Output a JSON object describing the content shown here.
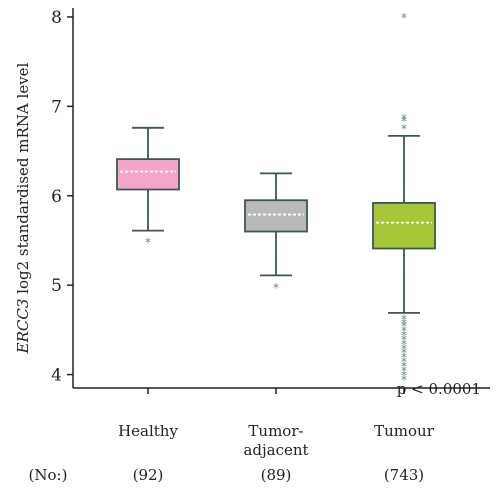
{
  "chart_data": {
    "type": "box",
    "ylabel_italic": "ERCC3",
    "ylabel_rest": " log2 standardised mRNA level",
    "ylim": [
      3.85,
      8.1
    ],
    "yticks": [
      "4",
      "5",
      "6",
      "7",
      "8"
    ],
    "annotation": "p < 0.0001",
    "count_prefix": "(No:)",
    "groups": [
      {
        "label_lines": [
          "Healthy"
        ],
        "count": "(92)",
        "color": "#f4a6c8",
        "whisker_low": 5.61,
        "q1": 6.07,
        "median": 6.27,
        "q3": 6.41,
        "whisker_high": 6.76,
        "outliers": [
          5.49
        ]
      },
      {
        "label_lines": [
          "Tumor-",
          "adjacent"
        ],
        "count": "(89)",
        "color": "#b9b9b9",
        "whisker_low": 5.11,
        "q1": 5.6,
        "median": 5.79,
        "q3": 5.95,
        "whisker_high": 6.25,
        "outliers": [
          4.98
        ]
      },
      {
        "label_lines": [
          "Tumour"
        ],
        "count": "(743)",
        "color": "#a6c637",
        "whisker_low": 4.69,
        "q1": 5.41,
        "median": 5.7,
        "q3": 5.92,
        "whisker_high": 6.67,
        "outliers": [
          8.0,
          6.87,
          6.84,
          6.76,
          4.63,
          4.58,
          4.55,
          4.5,
          4.45,
          4.4,
          4.35,
          4.3,
          4.25,
          4.2,
          4.15,
          4.1,
          4.05,
          4.0,
          3.95
        ]
      }
    ]
  }
}
